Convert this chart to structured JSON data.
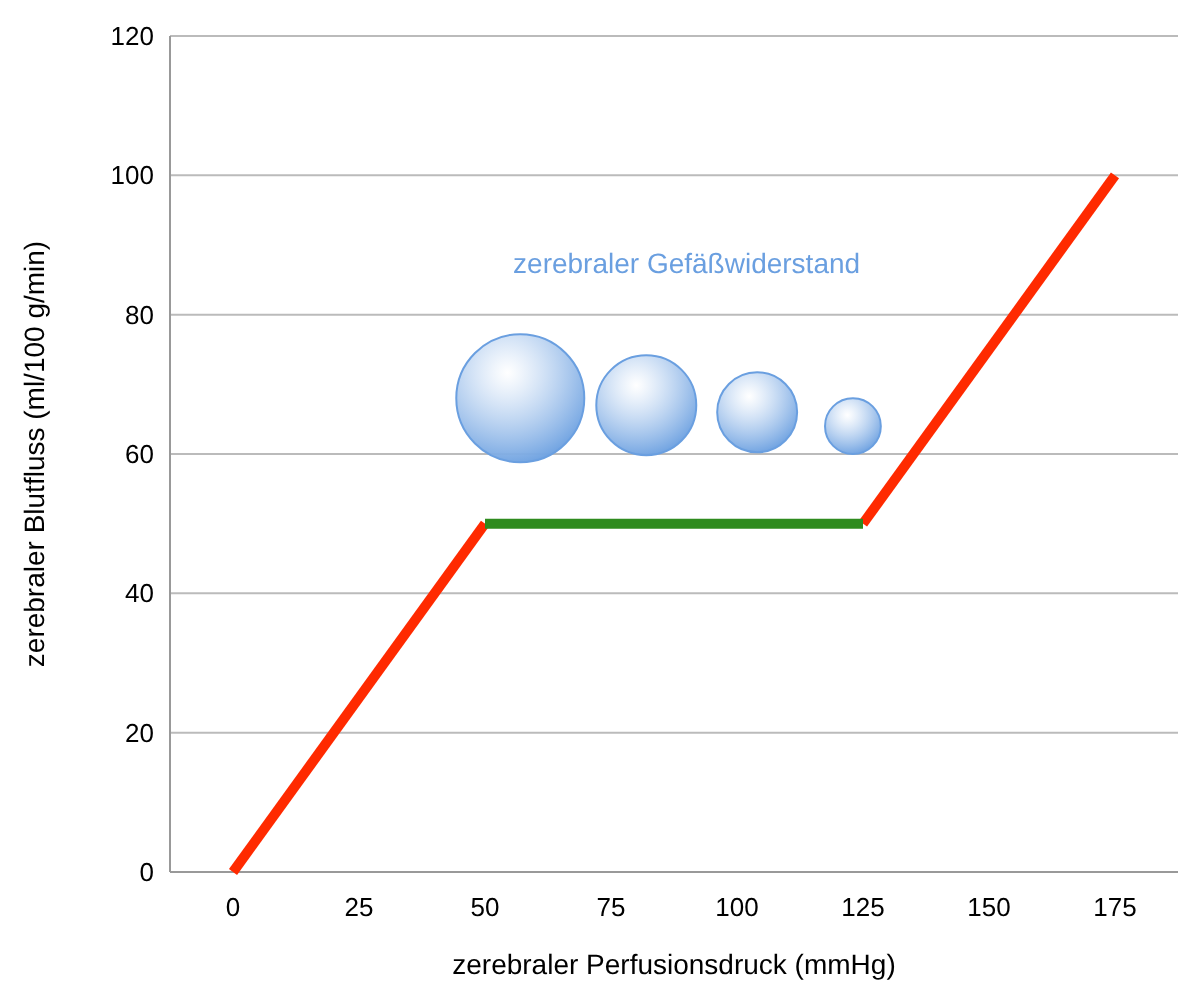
{
  "chart_data": {
    "type": "line",
    "xlabel": "zerebraler Perfusionsdruck (mmHg)",
    "ylabel": "zerebraler Blutfluss (ml/100 g/min)",
    "xlim": [
      -12.5,
      187.5
    ],
    "xticks": [
      0,
      25,
      50,
      75,
      100,
      125,
      150,
      175
    ],
    "ylim": [
      0,
      120
    ],
    "yticks": [
      0,
      20,
      40,
      60,
      80,
      100,
      120
    ],
    "grid": "y",
    "line_style": "solid",
    "series": [
      {
        "color": "#ff2a00",
        "x": [
          0,
          50
        ],
        "values": [
          0,
          50
        ]
      },
      {
        "color": "#ff2a00",
        "x": [
          125,
          175
        ],
        "values": [
          50,
          100
        ]
      },
      {
        "color": "#2e8b1e",
        "x": [
          50,
          125
        ],
        "values": [
          50,
          50
        ]
      },
      {
        "type": "bubble",
        "color": "#6a9fe0",
        "x": [
          57,
          82,
          104,
          123
        ],
        "values": [
          68,
          67,
          66,
          64
        ],
        "sizes": [
          1,
          0.61,
          0.39,
          0.19
        ]
      }
    ],
    "annotations": [
      "zerebraler Gefäßwiderstand"
    ]
  }
}
